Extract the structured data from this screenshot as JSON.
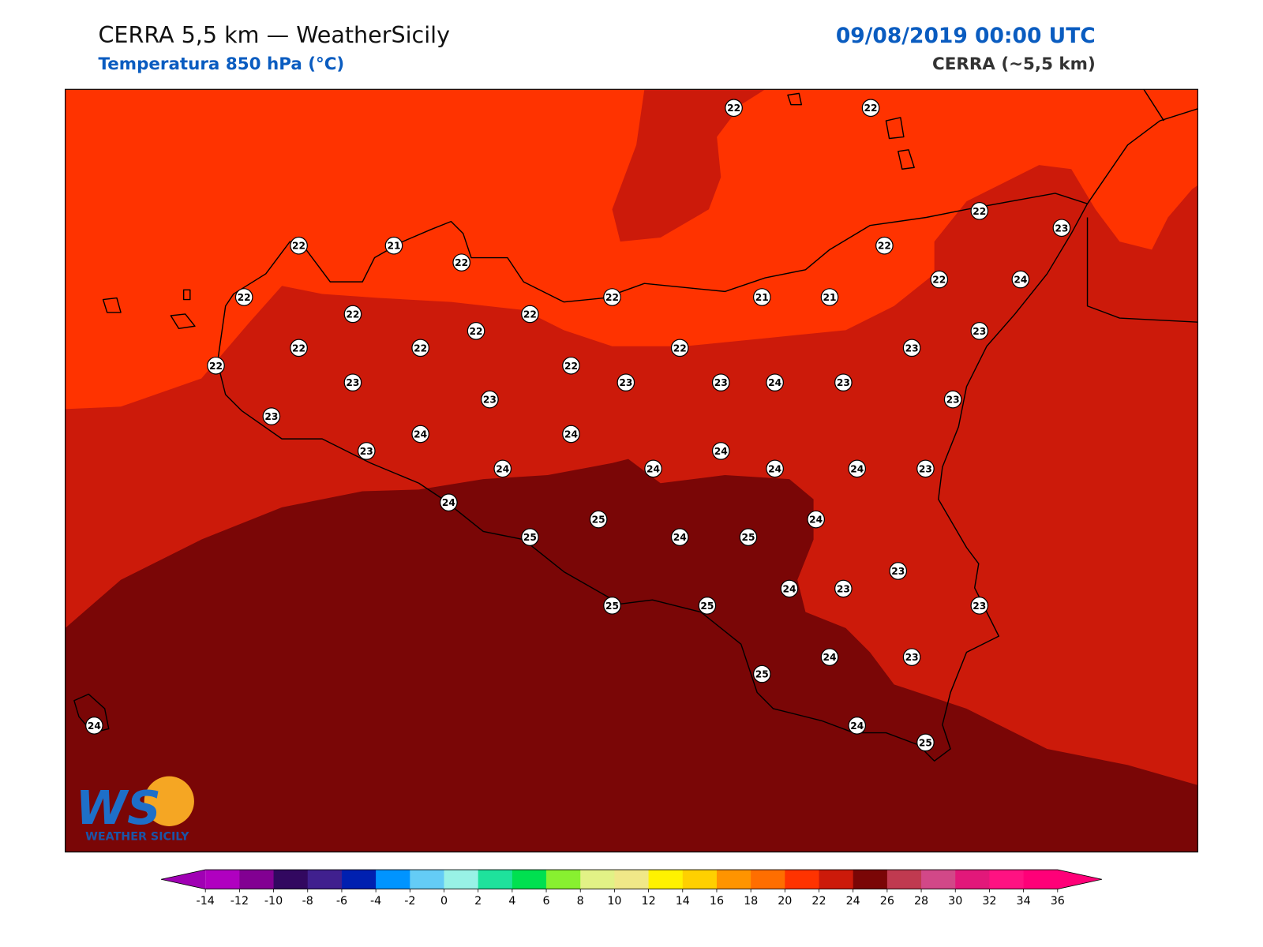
{
  "header": {
    "title": "CERRA 5,5 km — WeatherSicily",
    "subtitle": "Temperatura 850 hPa (°C)",
    "date": "09/08/2019 00:00 UTC",
    "source": "CERRA (~5,5 km)"
  },
  "stations": {
    "values": [
      22,
      22,
      22,
      23,
      22,
      21,
      22,
      22,
      22,
      22,
      21,
      21,
      22,
      24,
      22,
      22,
      22,
      23,
      22,
      22,
      22,
      23,
      22,
      22,
      23,
      23,
      23,
      24,
      23,
      23,
      23,
      23,
      24,
      24,
      23,
      24,
      24,
      24,
      24,
      24,
      23,
      24,
      24,
      25,
      25,
      24,
      25,
      23,
      24,
      23,
      25,
      25,
      23,
      24,
      23,
      25,
      24,
      24,
      25
    ]
  },
  "colorbar": {
    "ticks": [
      -14,
      -12,
      -10,
      -8,
      -6,
      -4,
      -2,
      0,
      2,
      4,
      6,
      8,
      10,
      12,
      14,
      16,
      18,
      20,
      22,
      24,
      26,
      28,
      30,
      32,
      34,
      36
    ],
    "colors": [
      "#b000c0",
      "#820092",
      "#320860",
      "#40208e",
      "#0020b0",
      "#0094ff",
      "#64ccf6",
      "#98f2e6",
      "#1ee29c",
      "#00e050",
      "#88f030",
      "#e2f286",
      "#f0e888",
      "#fff200",
      "#ffd000",
      "#ff9400",
      "#ff6e00",
      "#ff3300",
      "#cc1a0a",
      "#7a0606",
      "#c03a50",
      "#d24888",
      "#e2187a",
      "#ff1282",
      "#ff0078"
    ],
    "under_color": "#a000b4",
    "over_color": "#ff0078"
  },
  "logo": {
    "letters": "WS",
    "name": "WEATHER SICILY"
  }
}
